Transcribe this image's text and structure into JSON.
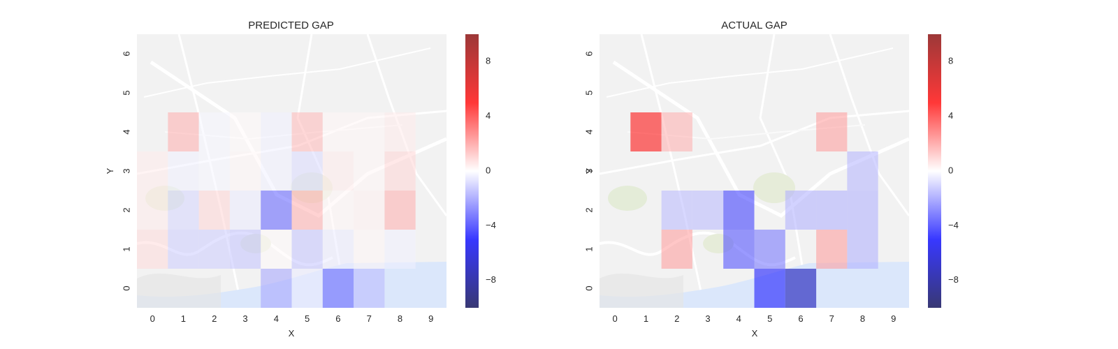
{
  "chart_data": [
    {
      "type": "heatmap",
      "title": "PREDICTED GAP",
      "xlabel": "X",
      "ylabel": "Y",
      "x_ticks": [
        "0",
        "1",
        "2",
        "3",
        "4",
        "5",
        "6",
        "7",
        "8",
        "9"
      ],
      "y_ticks": [
        "0",
        "1",
        "2",
        "3",
        "4",
        "5",
        "6"
      ],
      "xlim": [
        -0.5,
        9.5
      ],
      "ylim": [
        -0.5,
        6.5
      ],
      "colormap": "seismic",
      "vmin": -10,
      "vmax": 10,
      "colorbar_ticks": [
        "−8",
        "−4",
        "0",
        "4",
        "8"
      ],
      "colorbar_values": [
        -8,
        -4,
        0,
        4,
        8
      ],
      "cells": [
        {
          "x": 1,
          "y": 4,
          "value": 1.6
        },
        {
          "x": 2,
          "y": 4,
          "value": -0.2
        },
        {
          "x": 3,
          "y": 4,
          "value": 0.1
        },
        {
          "x": 4,
          "y": 4,
          "value": -0.3
        },
        {
          "x": 5,
          "y": 4,
          "value": 1.4
        },
        {
          "x": 6,
          "y": 4,
          "value": 0.2
        },
        {
          "x": 7,
          "y": 4,
          "value": 0.2
        },
        {
          "x": 8,
          "y": 4,
          "value": 0.4
        },
        {
          "x": 0,
          "y": 3,
          "value": 0.4
        },
        {
          "x": 1,
          "y": 3,
          "value": -0.3
        },
        {
          "x": 2,
          "y": 3,
          "value": -0.2
        },
        {
          "x": 3,
          "y": 3,
          "value": 0.2
        },
        {
          "x": 4,
          "y": 3,
          "value": -0.3
        },
        {
          "x": 5,
          "y": 3,
          "value": -0.7
        },
        {
          "x": 6,
          "y": 3,
          "value": 0.4
        },
        {
          "x": 7,
          "y": 3,
          "value": 0.2
        },
        {
          "x": 8,
          "y": 3,
          "value": 0.8
        },
        {
          "x": 0,
          "y": 2,
          "value": 0.4
        },
        {
          "x": 1,
          "y": 2,
          "value": -0.8
        },
        {
          "x": 2,
          "y": 2,
          "value": 0.8
        },
        {
          "x": 3,
          "y": 2,
          "value": -0.4
        },
        {
          "x": 4,
          "y": 2,
          "value": -3.2
        },
        {
          "x": 5,
          "y": 2,
          "value": 1.6
        },
        {
          "x": 6,
          "y": 2,
          "value": 0.2
        },
        {
          "x": 7,
          "y": 2,
          "value": 0.3
        },
        {
          "x": 8,
          "y": 2,
          "value": 1.6
        },
        {
          "x": 0,
          "y": 1,
          "value": 0.7
        },
        {
          "x": 1,
          "y": 1,
          "value": -1.0
        },
        {
          "x": 2,
          "y": 1,
          "value": -1.0
        },
        {
          "x": 3,
          "y": 1,
          "value": -1.2
        },
        {
          "x": 4,
          "y": 1,
          "value": 0.1
        },
        {
          "x": 5,
          "y": 1,
          "value": -1.2
        },
        {
          "x": 6,
          "y": 1,
          "value": -0.4
        },
        {
          "x": 7,
          "y": 1,
          "value": 0.2
        },
        {
          "x": 8,
          "y": 1,
          "value": -0.3
        },
        {
          "x": 4,
          "y": 0,
          "value": -1.8
        },
        {
          "x": 5,
          "y": 0,
          "value": -0.4
        },
        {
          "x": 6,
          "y": 0,
          "value": -3.2
        },
        {
          "x": 7,
          "y": 0,
          "value": -1.4
        }
      ]
    },
    {
      "type": "heatmap",
      "title": "ACTUAL GAP",
      "xlabel": "X",
      "ylabel": "Y",
      "x_ticks": [
        "0",
        "1",
        "2",
        "3",
        "4",
        "5",
        "6",
        "7",
        "8",
        "9"
      ],
      "y_ticks": [
        "0",
        "1",
        "2",
        "3",
        "4",
        "5",
        "6"
      ],
      "xlim": [
        -0.5,
        9.5
      ],
      "ylim": [
        -0.5,
        6.5
      ],
      "colormap": "seismic",
      "vmin": -10,
      "vmax": 10,
      "colorbar_ticks": [
        "−8",
        "−4",
        "0",
        "4",
        "8"
      ],
      "colorbar_values": [
        -8,
        -4,
        0,
        4,
        8
      ],
      "cells": [
        {
          "x": 1,
          "y": 4,
          "value": 5.0
        },
        {
          "x": 2,
          "y": 4,
          "value": 1.6
        },
        {
          "x": 7,
          "y": 4,
          "value": 2.0
        },
        {
          "x": 8,
          "y": 3,
          "value": -1.5
        },
        {
          "x": 2,
          "y": 2,
          "value": -1.4
        },
        {
          "x": 3,
          "y": 2,
          "value": -1.4
        },
        {
          "x": 4,
          "y": 2,
          "value": -4.0
        },
        {
          "x": 6,
          "y": 2,
          "value": -1.6
        },
        {
          "x": 7,
          "y": 2,
          "value": -1.6
        },
        {
          "x": 8,
          "y": 2,
          "value": -1.6
        },
        {
          "x": 2,
          "y": 1,
          "value": 2.0
        },
        {
          "x": 4,
          "y": 1,
          "value": -3.6
        },
        {
          "x": 5,
          "y": 1,
          "value": -2.8
        },
        {
          "x": 7,
          "y": 1,
          "value": 2.0
        },
        {
          "x": 8,
          "y": 1,
          "value": -1.6
        },
        {
          "x": 5,
          "y": 0,
          "value": -4.8
        },
        {
          "x": 6,
          "y": 0,
          "value": -7.2
        }
      ]
    }
  ]
}
